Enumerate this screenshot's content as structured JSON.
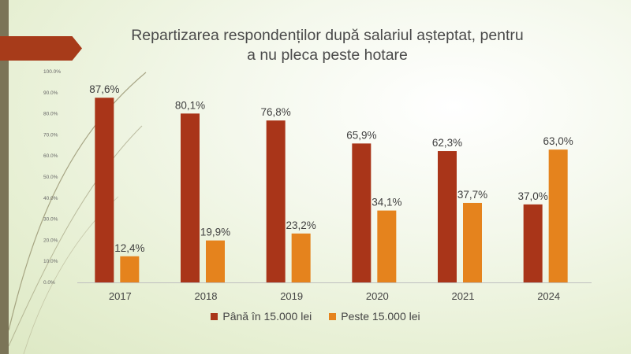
{
  "chart_data": {
    "type": "bar",
    "title": "Repartizarea respondenților după salariul așteptat, pentru\na nu pleca peste hotare",
    "categories": [
      "2017",
      "2018",
      "2019",
      "2020",
      "2021",
      "2024"
    ],
    "series": [
      {
        "name": "Până în 15.000 lei",
        "color": "#a93519",
        "values": [
          87.6,
          80.1,
          76.8,
          65.9,
          62.3,
          37.0
        ],
        "labels": [
          "87,6%",
          "80,1%",
          "76,8%",
          "65,9%",
          "62,3%",
          "37,0%"
        ]
      },
      {
        "name": "Peste 15.000 lei",
        "color": "#e5831d",
        "values": [
          12.4,
          19.9,
          23.2,
          34.1,
          37.7,
          63.0
        ],
        "labels": [
          "12,4%",
          "19,9%",
          "23,2%",
          "34,1%",
          "37,7%",
          "63,0%"
        ]
      }
    ],
    "ylim": [
      0,
      100
    ],
    "yticks": [
      "0.0%",
      "10.0%",
      "20.0%",
      "30.0%",
      "40.0%",
      "50.0%",
      "60.0%",
      "70.0%",
      "80.0%",
      "90.0%",
      "100.0%"
    ],
    "xlabel": "",
    "ylabel": "",
    "grid": false,
    "legend_position": "bottom"
  },
  "colors": {
    "accent_bar": "#7b7457",
    "title_arrow": "#a73b1a"
  }
}
